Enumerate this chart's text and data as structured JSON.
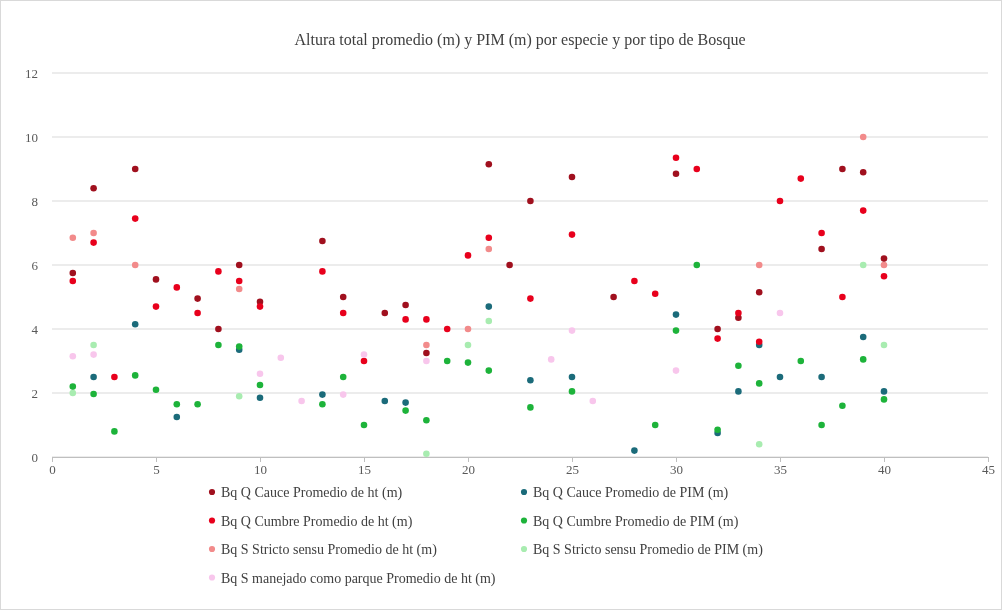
{
  "chart_data": {
    "type": "scatter",
    "title": "Altura total promedio (m) y PIM (m) por especie y por tipo de Bosque",
    "xlim": [
      0,
      45
    ],
    "xticks": [
      0,
      5,
      10,
      15,
      20,
      25,
      30,
      35,
      40,
      45
    ],
    "ylim": [
      0,
      12
    ],
    "yticks": [
      0,
      2,
      4,
      6,
      8,
      10,
      12
    ],
    "grid": "y",
    "legend": "bottom",
    "marker": "circle",
    "series": [
      {
        "name": "Bq Q Cauce Promedio de ht (m)",
        "color": "#a0101e",
        "x": [
          1,
          2,
          4,
          5,
          7,
          8,
          9,
          10,
          13,
          14,
          16,
          17,
          18,
          21,
          22,
          23,
          25,
          27,
          30,
          32,
          33,
          34,
          37,
          38,
          39,
          40
        ],
        "values": [
          5.75,
          8.4,
          9.0,
          5.55,
          4.95,
          4.0,
          6.0,
          4.85,
          6.75,
          5.0,
          4.5,
          4.75,
          3.25,
          9.15,
          6.0,
          8.0,
          8.75,
          5.0,
          8.85,
          4.0,
          4.35,
          5.15,
          6.5,
          9.0,
          8.9,
          6.2
        ]
      },
      {
        "name": "Bq Q Cauce Promedio de PIM (m)",
        "color": "#1b6b7a",
        "x": [
          2,
          4,
          6,
          9,
          10,
          13,
          16,
          17,
          21,
          23,
          25,
          28,
          30,
          32,
          33,
          34,
          35,
          37,
          39,
          40
        ],
        "values": [
          2.5,
          4.15,
          1.25,
          3.35,
          1.85,
          1.95,
          1.75,
          1.7,
          4.7,
          2.4,
          2.5,
          0.2,
          4.45,
          0.75,
          2.05,
          3.5,
          2.5,
          2.5,
          3.75,
          2.05
        ]
      },
      {
        "name": "Bq Q Cumbre Promedio de ht (m)",
        "color": "#e8001c",
        "x": [
          1,
          2,
          3,
          4,
          5,
          6,
          7,
          8,
          9,
          10,
          13,
          14,
          15,
          17,
          18,
          19,
          20,
          21,
          23,
          25,
          28,
          29,
          30,
          31,
          32,
          33,
          34,
          35,
          36,
          37,
          38,
          39,
          40
        ],
        "values": [
          5.5,
          6.7,
          2.5,
          7.45,
          4.7,
          5.3,
          4.5,
          5.8,
          5.5,
          4.7,
          5.8,
          4.5,
          3.0,
          4.3,
          4.3,
          4.0,
          6.3,
          6.85,
          4.95,
          6.95,
          5.5,
          5.1,
          9.35,
          9.0,
          3.7,
          4.5,
          3.6,
          8.0,
          8.7,
          7.0,
          5.0,
          7.7,
          5.65
        ]
      },
      {
        "name": "Bq Q Cumbre Promedio de PIM (m)",
        "color": "#1db33a",
        "x": [
          1,
          2,
          3,
          4,
          5,
          6,
          7,
          8,
          9,
          10,
          13,
          14,
          15,
          17,
          18,
          19,
          20,
          21,
          23,
          25,
          29,
          30,
          31,
          32,
          33,
          34,
          36,
          37,
          38,
          39,
          40
        ],
        "values": [
          2.2,
          1.97,
          0.8,
          2.55,
          2.1,
          1.65,
          1.65,
          3.5,
          3.45,
          2.25,
          1.65,
          2.5,
          1.0,
          1.45,
          1.15,
          3.0,
          2.95,
          2.7,
          1.55,
          2.05,
          1.0,
          3.95,
          6.0,
          0.85,
          2.85,
          2.3,
          3.0,
          1.0,
          1.6,
          3.05,
          1.8
        ]
      },
      {
        "name": "Bq S Stricto sensu Promedio de ht (m)",
        "color": "#f28b8b",
        "x": [
          1,
          2,
          4,
          9,
          18,
          20,
          21,
          34,
          39,
          40
        ],
        "values": [
          6.85,
          7.0,
          6.0,
          5.25,
          3.5,
          4.0,
          6.5,
          6.0,
          10.0,
          6.0
        ]
      },
      {
        "name": "Bq S Stricto sensu Promedio de PIM (m)",
        "color": "#a8ecb0",
        "x": [
          1,
          2,
          9,
          18,
          20,
          21,
          34,
          39,
          40
        ],
        "values": [
          2.0,
          3.5,
          1.9,
          0.1,
          3.5,
          4.25,
          0.4,
          6.0,
          3.5
        ]
      },
      {
        "name": "Bq S manejado como parque Promedio de ht (m)",
        "color": "#f8c6ec",
        "x": [
          1,
          2,
          10,
          11,
          12,
          14,
          15,
          18,
          24,
          25,
          26,
          30,
          35
        ],
        "values": [
          3.15,
          3.2,
          2.6,
          3.1,
          1.75,
          1.95,
          3.2,
          3.0,
          3.05,
          3.95,
          1.75,
          2.7,
          4.5
        ]
      }
    ]
  }
}
